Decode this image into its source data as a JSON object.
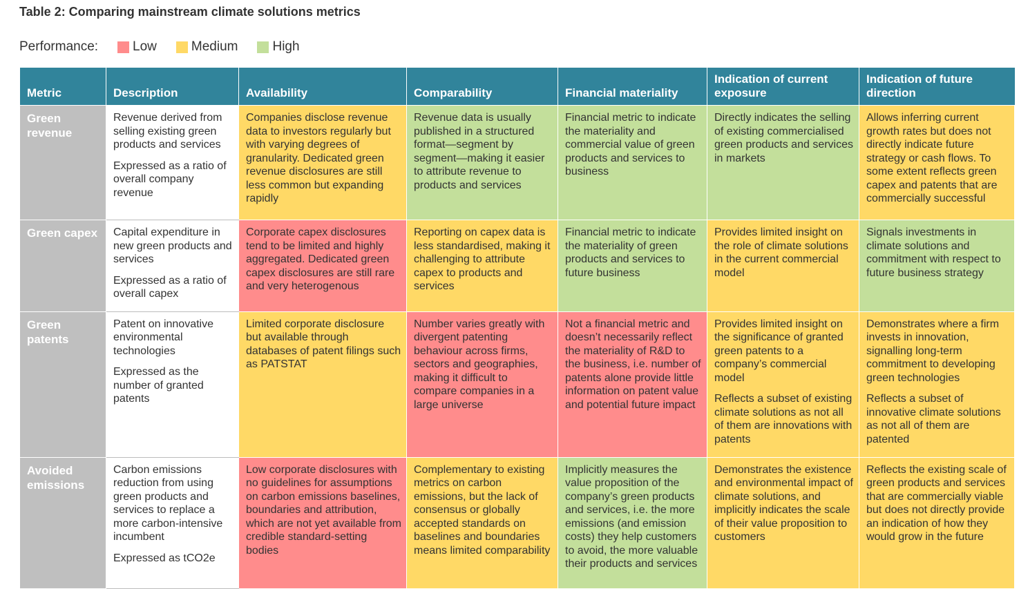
{
  "title": "Table 2: Comparing mainstream climate solutions metrics",
  "legend": {
    "label": "Performance:",
    "items": [
      {
        "label": "Low",
        "color": "#ff8c8c"
      },
      {
        "label": "Medium",
        "color": "#ffd966"
      },
      {
        "label": "High",
        "color": "#c3df9b"
      }
    ]
  },
  "table": {
    "header": [
      "Metric",
      "Description",
      "Availability",
      "Comparability",
      "Financial materiality",
      "Indication of current exposure",
      "Indication of future direction"
    ],
    "rows": [
      {
        "metric": "Green revenue",
        "description": [
          "Revenue derived from selling existing green products and services",
          "Expressed as a ratio of overall company revenue"
        ],
        "cells": [
          {
            "color": "#ffd966",
            "text": [
              "Companies disclose revenue data to investors regularly but with varying degrees of granularity. Dedicated green revenue disclosures are still less common but expanding rapidly"
            ]
          },
          {
            "color": "#c3df9b",
            "text": [
              "Revenue data is usually published in a structured format—segment by segment—making it easier to attribute revenue to products and services"
            ]
          },
          {
            "color": "#c3df9b",
            "text": [
              "Financial metric to indicate the materiality and commercial value of green products and services to business"
            ]
          },
          {
            "color": "#c3df9b",
            "text": [
              "Directly indicates the selling of existing commercialised green products and services in markets"
            ]
          },
          {
            "color": "#ffd966",
            "text": [
              "Allows inferring current growth rates but does not directly indicate future strategy or cash flows. To some extent reflects green capex and patents that are commercially successful"
            ]
          }
        ]
      },
      {
        "metric": "Green capex",
        "description": [
          "Capital expenditure in new green products and services",
          "Expressed as a ratio of overall capex"
        ],
        "cells": [
          {
            "color": "#ff8c8c",
            "text": [
              "Corporate capex disclosures tend to be limited and highly aggregated. Dedicated green capex disclosures are still rare and very heterogenous"
            ]
          },
          {
            "color": "#ffd966",
            "text": [
              "Reporting on capex data is less standardised, making it challenging to attribute capex to products and services"
            ]
          },
          {
            "color": "#c3df9b",
            "text": [
              "Financial metric to indicate the materiality of green products and services to future business"
            ]
          },
          {
            "color": "#ffd966",
            "text": [
              "Provides limited insight on the role of climate solutions in the current commercial model"
            ]
          },
          {
            "color": "#c3df9b",
            "text": [
              "Signals investments in climate solutions and commitment with respect to future business strategy"
            ]
          }
        ]
      },
      {
        "metric": "Green patents",
        "description": [
          "Patent on innovative environmental technologies",
          "Expressed as the number of granted patents"
        ],
        "cells": [
          {
            "color": "#ffd966",
            "text": [
              "Limited corporate disclosure but available through databases of patent filings such as PATSTAT"
            ]
          },
          {
            "color": "#ff8c8c",
            "text": [
              "Number varies greatly with divergent patenting behaviour across firms, sectors and geographies, making it difficult to compare companies in a large universe"
            ]
          },
          {
            "color": "#ff8c8c",
            "text": [
              "Not a financial metric and doesn’t necessarily reflect the materiality of R&D to the business, i.e. number of patents alone provide little information on patent value and potential future impact"
            ]
          },
          {
            "color": "#ffd966",
            "text": [
              "Provides limited insight on the significance of granted green patents to a company’s commercial model",
              "Reflects a subset of existing climate solutions as not all of them are innovations with patents"
            ]
          },
          {
            "color": "#ffd966",
            "text": [
              "Demonstrates where a firm invests in innovation, signalling long-term commitment to developing green technologies",
              "Reflects a subset of innovative climate solutions as not all of them are patented"
            ]
          }
        ]
      },
      {
        "metric": "Avoided emissions",
        "description": [
          "Carbon emissions reduction from using green products and services to replace a more carbon-intensive incumbent",
          "Expressed as tCO2e"
        ],
        "cells": [
          {
            "color": "#ff8c8c",
            "text": [
              "Low corporate disclosures with no guidelines for assumptions on carbon emissions baselines, boundaries and attribution, which are not yet available from credible standard-setting bodies"
            ]
          },
          {
            "color": "#ffd966",
            "text": [
              "Complementary to existing metrics on carbon emissions, but the lack of consensus or globally accepted standards on baselines and boundaries means limited comparability"
            ]
          },
          {
            "color": "#c3df9b",
            "text": [
              "Implicitly measures the value proposition of the company’s green products and services, i.e. the more emissions (and emission costs) they help customers to avoid, the more valuable their products and services"
            ]
          },
          {
            "color": "#ffd966",
            "text": [
              "Demonstrates the existence and environmental impact of climate solutions, and implicitly indicates the scale of their value proposition to customers"
            ]
          },
          {
            "color": "#ffd966",
            "text": [
              "Reflects the existing scale of green products and services that are commercially viable but does not directly provide an indication of how they would grow in the future"
            ]
          }
        ]
      }
    ]
  }
}
